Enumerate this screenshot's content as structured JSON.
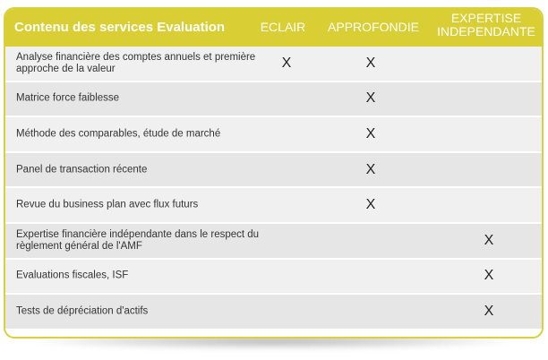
{
  "header": {
    "title": "Contenu des services Evaluation",
    "col_eclair": "ECLAIR",
    "col_approfondie": "APPROFONDIE",
    "col_expertise_line1": "EXPERTISE",
    "col_expertise_line2": "INDEPENDANTE"
  },
  "colors": {
    "accent": "#d9cf35",
    "row_light": "#f0f0f0",
    "row_dark": "#e6e6e6"
  },
  "rows": [
    {
      "label": "Analyse financière des comptes annuels et première approche de la valeur",
      "eclair": "X",
      "approfondie": "X",
      "expertise": ""
    },
    {
      "label": "Matrice force faiblesse",
      "eclair": "",
      "approfondie": "X",
      "expertise": ""
    },
    {
      "label": "Méthode des comparables, étude de marché",
      "eclair": "",
      "approfondie": "X",
      "expertise": ""
    },
    {
      "label": "Panel de transaction récente",
      "eclair": "",
      "approfondie": "X",
      "expertise": ""
    },
    {
      "label": "Revue du business plan avec flux futurs",
      "eclair": "",
      "approfondie": "X",
      "expertise": ""
    },
    {
      "label": "Expertise financière indépendante dans le respect du règlement général de l'AMF",
      "eclair": "",
      "approfondie": "",
      "expertise": "X"
    },
    {
      "label": "Evaluations fiscales, ISF",
      "eclair": "",
      "approfondie": "",
      "expertise": "X"
    },
    {
      "label": "Tests de dépréciation d'actifs",
      "eclair": "",
      "approfondie": "",
      "expertise": "X"
    }
  ]
}
